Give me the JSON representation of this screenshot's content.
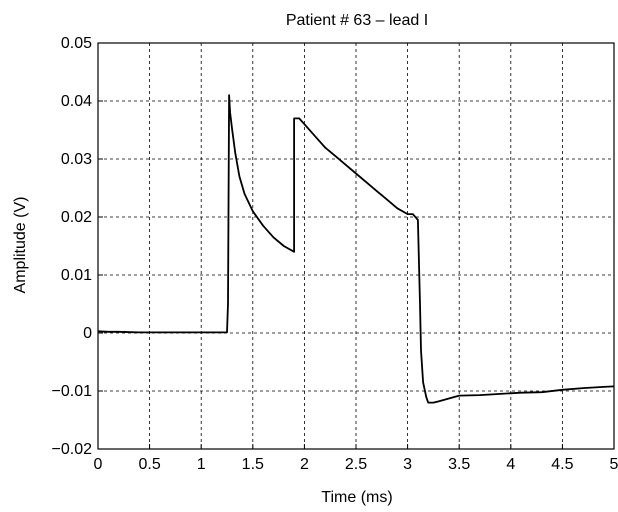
{
  "chart_data": {
    "type": "line",
    "title": "Patient # 63 – lead I",
    "xlabel": "Time (ms)",
    "ylabel": "Amplitude (V)",
    "xlim": [
      0,
      5
    ],
    "ylim": [
      -0.02,
      0.05
    ],
    "x_ticks": [
      0,
      0.5,
      1,
      1.5,
      2,
      2.5,
      3,
      3.5,
      4,
      4.5,
      5
    ],
    "x_tick_labels": [
      "0",
      "0.5",
      "1",
      "1.5",
      "2",
      "2.5",
      "3",
      "3.5",
      "4",
      "4.5",
      "5"
    ],
    "y_ticks": [
      -0.02,
      -0.01,
      0,
      0.01,
      0.02,
      0.03,
      0.04,
      0.05
    ],
    "y_tick_labels": [
      "−0.02",
      "−0.01",
      "0",
      "0.01",
      "0.02",
      "0.03",
      "0.04",
      "0.05"
    ],
    "grid": true,
    "grid_style": "dashed",
    "line_color": "#000000",
    "series": [
      {
        "x": [
          0,
          0.1,
          0.2,
          0.4,
          0.6,
          0.8,
          1.0,
          1.2,
          1.25,
          1.26,
          1.27,
          1.28,
          1.3,
          1.33,
          1.37,
          1.42,
          1.5,
          1.6,
          1.7,
          1.8,
          1.85,
          1.9,
          1.9,
          1.95,
          2.0,
          2.1,
          2.2,
          2.3,
          2.4,
          2.5,
          2.6,
          2.7,
          2.8,
          2.9,
          3.0,
          3.05,
          3.1,
          3.12,
          3.13,
          3.15,
          3.18,
          3.2,
          3.25,
          3.3,
          3.4,
          3.5,
          3.7,
          3.9,
          4.1,
          4.3,
          4.5,
          4.7,
          4.9,
          5.0
        ],
        "y": [
          0.0003,
          0.0002,
          0.0002,
          0.0001,
          0.0001,
          0.0001,
          0.0001,
          0.0001,
          0.0001,
          0.005,
          0.041,
          0.038,
          0.035,
          0.031,
          0.027,
          0.024,
          0.021,
          0.0185,
          0.0165,
          0.015,
          0.0145,
          0.014,
          0.037,
          0.037,
          0.036,
          0.034,
          0.032,
          0.0305,
          0.029,
          0.0275,
          0.026,
          0.0245,
          0.023,
          0.0215,
          0.0205,
          0.0205,
          0.0195,
          0.005,
          -0.003,
          -0.0085,
          -0.011,
          -0.012,
          -0.012,
          -0.0118,
          -0.0113,
          -0.0108,
          -0.0107,
          -0.0105,
          -0.0103,
          -0.0102,
          -0.0098,
          -0.0095,
          -0.0093,
          -0.0092
        ]
      }
    ]
  }
}
